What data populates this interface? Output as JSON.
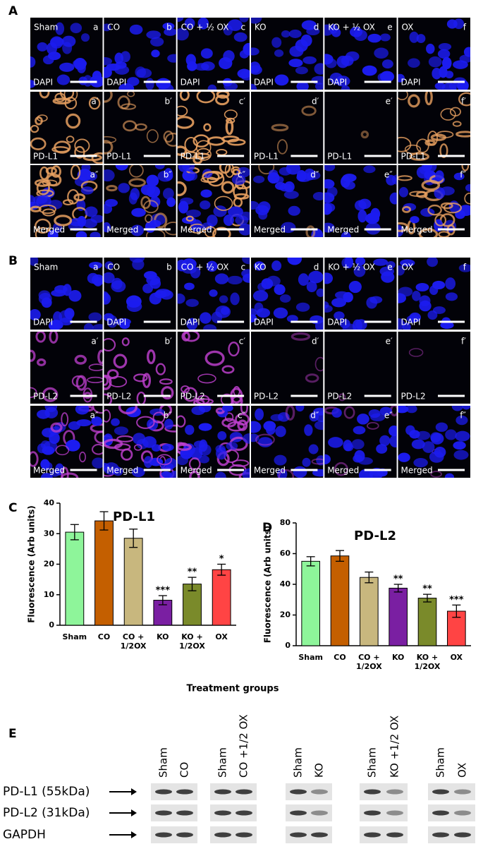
{
  "panel_labels": [
    "A",
    "B",
    "C",
    "D",
    "E"
  ],
  "microscopy": [
    {
      "groups": [
        "Sham",
        "CO",
        "CO + ½ OX",
        "KO",
        "KO + ½ OX",
        "OX"
      ],
      "rows": [
        {
          "stain": "DAPI",
          "letters": [
            "a",
            "b",
            "c",
            "d",
            "e",
            "f"
          ]
        },
        {
          "stain": "PD-L1",
          "letters": [
            "a′",
            "b′",
            "c′",
            "d′",
            "e′",
            "f′"
          ]
        },
        {
          "stain": "Merged",
          "letters": [
            "a″",
            "b″",
            "c″",
            "d″",
            "e″",
            "f″"
          ]
        }
      ]
    },
    {
      "groups": [
        "Sham",
        "CO",
        "CO + ½ OX",
        "KO",
        "KO + ½ OX",
        "OX"
      ],
      "rows": [
        {
          "stain": "DAPI",
          "letters": [
            "a",
            "b",
            "c",
            "d",
            "e",
            "f"
          ]
        },
        {
          "stain": "PD-L2",
          "letters": [
            "a′",
            "b′",
            "c′",
            "d′",
            "e′",
            "f′"
          ]
        },
        {
          "stain": "Merged",
          "letters": [
            "a″",
            "b″",
            "c″",
            "d″",
            "e″",
            "f″"
          ]
        }
      ]
    }
  ],
  "chart_data": [
    {
      "type": "bar",
      "title": "PD-L1",
      "y_label": "Fluorescence (Arb units)",
      "categories": [
        "Sham",
        "CO",
        "CO + 1/2OX",
        "KO",
        "KO + 1/2OX",
        "OX"
      ],
      "values": [
        30.5,
        34.2,
        28.5,
        8.2,
        13.5,
        18.2
      ],
      "errors": [
        2.5,
        3,
        3,
        1.5,
        2.2,
        1.8
      ],
      "significance": [
        null,
        null,
        null,
        "***",
        "**",
        "*"
      ],
      "colors": [
        "#8ef59a",
        "#c45f00",
        "#c8b77e",
        "#7a1fa2",
        "#7a8a2a",
        "#ff4444"
      ],
      "ylim": [
        0,
        40
      ],
      "yticks": [
        0,
        10,
        20,
        30,
        40
      ]
    },
    {
      "type": "bar",
      "title": "PD-L2",
      "y_label": "Fluorescence (Arb units)",
      "categories": [
        "Sham",
        "CO",
        "CO + 1/2OX",
        "KO",
        "KO + 1/2OX",
        "OX"
      ],
      "values": [
        55,
        58.5,
        44.5,
        37.5,
        31,
        22.5
      ],
      "errors": [
        3,
        3.5,
        3.5,
        2.5,
        2.5,
        4
      ],
      "significance": [
        null,
        null,
        null,
        "**",
        "**",
        "***"
      ],
      "colors": [
        "#8ef59a",
        "#c45f00",
        "#c8b77e",
        "#7a1fa2",
        "#7a8a2a",
        "#ff4444"
      ],
      "ylim": [
        0,
        80
      ],
      "yticks": [
        0,
        20,
        40,
        60,
        80
      ]
    }
  ],
  "x_axis_label": "Treatment groups",
  "blot": {
    "proteins": [
      "PD-L1 (55kDa)",
      "PD-L2 (31kDa)",
      "GAPDH"
    ],
    "lanes": [
      [
        "Sham",
        "CO"
      ],
      [
        "Sham",
        "CO +1/2 OX"
      ],
      [
        "Sham",
        "KO"
      ],
      [
        "Sham",
        "KO +1/2 OX"
      ],
      [
        "Sham",
        "OX"
      ]
    ]
  }
}
